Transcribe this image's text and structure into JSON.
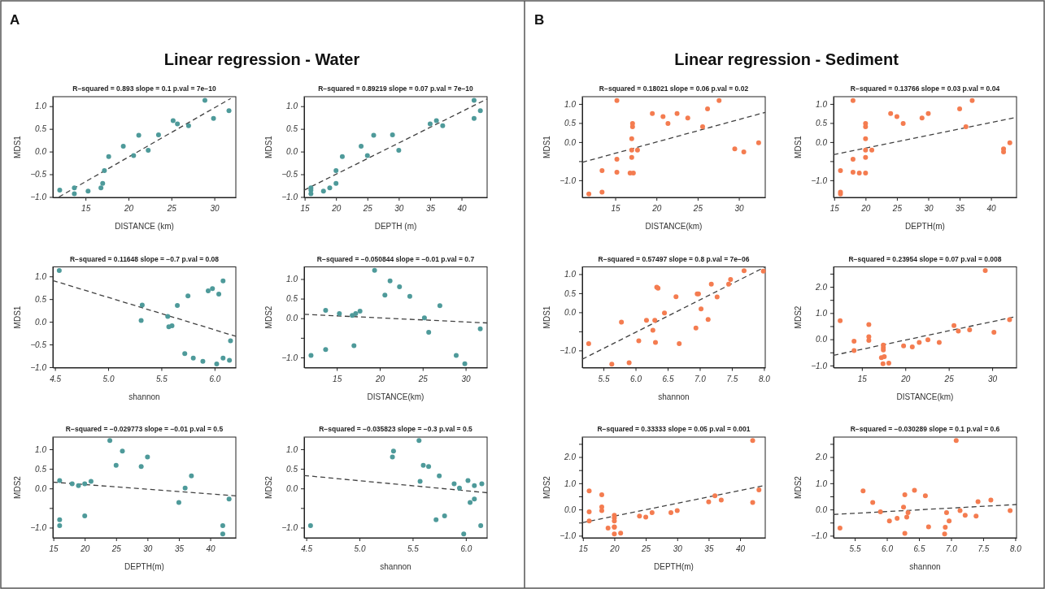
{
  "chart_data": [
    {
      "type": "scatter",
      "title": "R−squared = 0.893 slope = 0.1 p.val = 7e−10",
      "xlabel": "DISTANCE (km)",
      "ylabel": "MDS1",
      "annotations": [
        "A",
        "Linear regression - Water"
      ],
      "xlim": [
        11.2,
        32.5
      ],
      "xticks": [
        15,
        20,
        25,
        30
      ],
      "ylim": [
        -1.01,
        1.21
      ],
      "yticks": [
        {
          "value": -1,
          "label": "−1.0"
        },
        {
          "value": -0.5,
          "label": "−0.5"
        },
        {
          "value": 0,
          "label": "0.0"
        },
        {
          "value": 0.5,
          "label": "0.5"
        },
        {
          "value": 1,
          "label": "1.0"
        }
      ],
      "series": [
        {
          "type": "scatter",
          "marker": "circle",
          "color": "#4e9a9a",
          "x": [
            12.0,
            13.7,
            13.7,
            15.3,
            16.8,
            17.0,
            17.2,
            17.7,
            19.4,
            20.6,
            21.2,
            22.3,
            23.5,
            25.2,
            25.7,
            27.0,
            28.9,
            29.9,
            31.7
          ],
          "values": [
            -0.85,
            -0.8,
            -0.93,
            -0.87,
            -0.8,
            -0.7,
            -0.42,
            -0.11,
            0.12,
            -0.09,
            0.36,
            0.03,
            0.37,
            0.68,
            0.61,
            0.57,
            1.13,
            0.73,
            0.9
          ]
        },
        {
          "type": "line",
          "marker": "none",
          "color": "#404040",
          "line_style": "dashed",
          "x": [
            11.9,
            31.9
          ],
          "values": [
            -1.0,
            1.17
          ]
        }
      ]
    },
    {
      "type": "scatter",
      "title": "R−squared = 0.89219 slope = 0.07 p.val = 7e−10",
      "xlabel": "DEPTH (m)",
      "ylabel": "MDS1",
      "xlim": [
        14.92,
        44.08
      ],
      "xticks": [
        15,
        20,
        25,
        30,
        35,
        40
      ],
      "ylim": [
        -1.01,
        1.21
      ],
      "yticks": [
        {
          "value": -1,
          "label": "−1.0"
        },
        {
          "value": -0.5,
          "label": "−0.5"
        },
        {
          "value": 0,
          "label": "0.0"
        },
        {
          "value": 0.5,
          "label": "0.5"
        },
        {
          "value": 1,
          "label": "1.0"
        }
      ],
      "series": [
        {
          "type": "scatter",
          "marker": "circle",
          "color": "#4e9a9a",
          "x": [
            16,
            16,
            16,
            18,
            19,
            20,
            20,
            21,
            24,
            25,
            26,
            29,
            30,
            35,
            36,
            37,
            42,
            42,
            43
          ],
          "values": [
            -0.8,
            -0.85,
            -0.93,
            -0.87,
            -0.8,
            -0.42,
            -0.7,
            -0.11,
            0.12,
            -0.09,
            0.36,
            0.37,
            0.03,
            0.61,
            0.68,
            0.57,
            1.13,
            0.73,
            0.9
          ]
        },
        {
          "type": "line",
          "marker": "none",
          "color": "#404040",
          "line_style": "dashed",
          "x": [
            14.92,
            44.08
          ],
          "values": [
            -0.85,
            1.16
          ]
        }
      ]
    },
    {
      "type": "scatter",
      "title": "R−squared = 0.11648 slope = −0.7 p.val = 0.08",
      "xlabel": "shannon",
      "ylabel": "MDS1",
      "xlim": [
        4.48,
        6.2
      ],
      "xticks": [
        4.5,
        {
          "value": 5,
          "label": "5.0"
        },
        5.5,
        {
          "value": 6,
          "label": "6.0"
        }
      ],
      "ylim": [
        -1.01,
        1.21
      ],
      "yticks": [
        {
          "value": -1,
          "label": "−1.0"
        },
        {
          "value": -0.5,
          "label": "−0.5"
        },
        {
          "value": 0,
          "label": "0.0"
        },
        {
          "value": 0.5,
          "label": "0.5"
        },
        {
          "value": 1,
          "label": "1.0"
        }
      ],
      "series": [
        {
          "type": "scatter",
          "marker": "circle",
          "color": "#4e9a9a",
          "x": [
            4.54,
            5.32,
            5.31,
            5.56,
            5.57,
            5.6,
            5.65,
            5.75,
            5.72,
            5.8,
            5.94,
            5.98,
            6.04,
            6.08,
            6.08,
            6.14,
            5.89,
            6.02,
            6.15
          ],
          "values": [
            1.13,
            0.37,
            0.03,
            0.12,
            -0.11,
            -0.09,
            0.36,
            0.57,
            -0.7,
            -0.8,
            0.68,
            0.73,
            0.61,
            0.9,
            -0.8,
            -0.85,
            -0.87,
            -0.93,
            -0.42
          ]
        },
        {
          "type": "line",
          "marker": "none",
          "color": "#404040",
          "line_style": "dashed",
          "x": [
            4.48,
            6.2
          ],
          "values": [
            0.91,
            -0.32
          ]
        }
      ]
    },
    {
      "type": "scatter",
      "title": "R−squared = −0.050844 slope = −0.01 p.val = 0.7",
      "xlabel": "DISTANCE(km)",
      "ylabel": "MDS2",
      "xlim": [
        11.2,
        32.5
      ],
      "xticks": [
        15,
        20,
        25,
        30
      ],
      "ylim": [
        -1.26,
        1.31
      ],
      "yticks": [
        {
          "value": -1,
          "label": "−1.0"
        },
        {
          "value": -0.5,
          "label": null
        },
        {
          "value": 0,
          "label": "0.0"
        },
        {
          "value": 0.5,
          "label": "0.5"
        },
        {
          "value": 1,
          "label": "1.0"
        }
      ],
      "series": [
        {
          "type": "scatter",
          "marker": "circle",
          "color": "#4e9a9a",
          "x": [
            12.0,
            13.7,
            13.7,
            15.3,
            16.8,
            17.0,
            17.2,
            17.7,
            19.4,
            20.6,
            21.2,
            22.3,
            23.5,
            25.2,
            25.7,
            27.0,
            28.9,
            29.9,
            31.7
          ],
          "values": [
            -0.95,
            0.2,
            -0.8,
            0.12,
            0.07,
            -0.7,
            0.12,
            0.18,
            1.22,
            0.59,
            0.95,
            0.8,
            0.56,
            0.01,
            -0.36,
            0.32,
            -0.95,
            -1.16,
            -0.27
          ]
        },
        {
          "type": "line",
          "marker": "none",
          "color": "#404040",
          "line_style": "dashed",
          "x": [
            11.2,
            32.5
          ],
          "values": [
            0.1,
            -0.12
          ]
        }
      ]
    },
    {
      "type": "scatter",
      "title": "R−squared = −0.029773 slope = −0.01 p.val = 0.5",
      "xlabel": "DEPTH(m)",
      "ylabel": "MDS2",
      "xlim": [
        14.92,
        44.08
      ],
      "xticks": [
        15,
        20,
        25,
        30,
        35,
        40
      ],
      "ylim": [
        -1.26,
        1.31
      ],
      "yticks": [
        {
          "value": -1,
          "label": "−1.0"
        },
        {
          "value": -0.5,
          "label": null
        },
        {
          "value": 0,
          "label": "0.0"
        },
        {
          "value": 0.5,
          "label": "0.5"
        },
        {
          "value": 1,
          "label": "1.0"
        }
      ],
      "series": [
        {
          "type": "scatter",
          "marker": "circle",
          "color": "#4e9a9a",
          "x": [
            16,
            16,
            16,
            18,
            19,
            20,
            20,
            21,
            24,
            25,
            26,
            29,
            30,
            35,
            36,
            37,
            42,
            42,
            43
          ],
          "values": [
            0.2,
            -0.8,
            -0.95,
            0.12,
            0.07,
            0.12,
            -0.7,
            0.18,
            1.22,
            0.59,
            0.95,
            0.56,
            0.8,
            -0.36,
            0.01,
            0.32,
            -0.95,
            -1.16,
            -0.27
          ]
        },
        {
          "type": "line",
          "marker": "none",
          "color": "#404040",
          "line_style": "dashed",
          "x": [
            14.92,
            44.08
          ],
          "values": [
            0.16,
            -0.19
          ]
        }
      ]
    },
    {
      "type": "scatter",
      "title": "R−squared = −0.035823 slope = −0.3 p.val = 0.5",
      "xlabel": "shannon",
      "ylabel": "MDS2",
      "xlim": [
        4.48,
        6.2
      ],
      "xticks": [
        4.5,
        {
          "value": 5,
          "label": "5.0"
        },
        5.5,
        {
          "value": 6,
          "label": "6.0"
        }
      ],
      "ylim": [
        -1.26,
        1.31
      ],
      "yticks": [
        {
          "value": -1,
          "label": "−1.0"
        },
        {
          "value": -0.5,
          "label": null
        },
        {
          "value": 0,
          "label": "0.0"
        },
        {
          "value": 0.5,
          "label": "0.5"
        },
        {
          "value": 1,
          "label": "1.0"
        }
      ],
      "series": [
        {
          "type": "scatter",
          "marker": "circle",
          "color": "#4e9a9a",
          "x": [
            4.54,
            5.31,
            5.32,
            5.56,
            5.57,
            5.6,
            5.65,
            5.75,
            5.72,
            5.8,
            5.89,
            5.94,
            5.98,
            6.02,
            6.04,
            6.08,
            6.08,
            6.14,
            6.15
          ],
          "values": [
            -0.95,
            0.8,
            0.95,
            1.22,
            0.18,
            0.59,
            0.56,
            0.32,
            -0.8,
            -0.7,
            0.12,
            0.01,
            -1.16,
            0.2,
            -0.36,
            0.07,
            -0.27,
            -0.95,
            0.12
          ]
        },
        {
          "type": "line",
          "marker": "none",
          "color": "#404040",
          "line_style": "dashed",
          "x": [
            4.48,
            6.2
          ],
          "values": [
            0.33,
            -0.11
          ]
        }
      ]
    },
    {
      "type": "scatter",
      "title": "R−squared = 0.18021 slope = 0.06 p.val = 0.02",
      "xlabel": "DISTANCE(km)",
      "ylabel": "MDS1",
      "annotations": [
        "B",
        "Linear regression - Sediment"
      ],
      "xlim": [
        11.0,
        33.2
      ],
      "xticks": [
        15,
        20,
        25,
        30
      ],
      "ylim": [
        -1.45,
        1.19
      ],
      "yticks": [
        {
          "value": -1,
          "label": "−1.0"
        },
        {
          "value": -0.5,
          "label": null
        },
        {
          "value": 0,
          "label": "0.0"
        },
        {
          "value": 0.5,
          "label": "0.5"
        },
        {
          "value": 1,
          "label": "1.0"
        }
      ],
      "series": [
        {
          "type": "scatter",
          "marker": "circle",
          "color": "#f47c50",
          "x": [
            11.8,
            13.4,
            13.4,
            15.2,
            15.2,
            15.2,
            16.8,
            17.2,
            17.0,
            17.0,
            17.0,
            17.1,
            17.1,
            17.7,
            19.5,
            20.8,
            21.4,
            22.5,
            23.8,
            25.6,
            26.2,
            27.6,
            29.5,
            30.6,
            32.4
          ],
          "values": [
            -1.36,
            -0.75,
            -1.31,
            1.09,
            -0.45,
            -0.79,
            -0.81,
            -0.81,
            0.09,
            -0.21,
            -0.4,
            0.49,
            0.4,
            -0.21,
            0.75,
            0.67,
            0.49,
            0.75,
            0.63,
            0.4,
            0.87,
            1.09,
            -0.18,
            -0.26,
            -0.02
          ]
        },
        {
          "type": "line",
          "marker": "none",
          "color": "#404040",
          "line_style": "dashed",
          "x": [
            11.0,
            33.2
          ],
          "values": [
            -0.53,
            0.78
          ]
        }
      ]
    },
    {
      "type": "scatter",
      "title": "R−squared = 0.13766 slope = 0.03 p.val = 0.04",
      "xlabel": "DEPTH(m)",
      "ylabel": "MDS1",
      "xlim": [
        14.9,
        44.07
      ],
      "xticks": [
        15,
        20,
        25,
        30,
        35,
        40
      ],
      "ylim": [
        -1.45,
        1.19
      ],
      "yticks": [
        {
          "value": -1,
          "label": "−1.0"
        },
        {
          "value": -0.5,
          "label": null
        },
        {
          "value": 0,
          "label": "0.0"
        },
        {
          "value": 0.5,
          "label": "0.5"
        },
        {
          "value": 1,
          "label": "1.0"
        }
      ],
      "series": [
        {
          "type": "scatter",
          "marker": "circle",
          "color": "#f47c50",
          "x": [
            16,
            16,
            16,
            18,
            18,
            18,
            19,
            20,
            20,
            20,
            20,
            20,
            20,
            21,
            24,
            25,
            26,
            29,
            30,
            35,
            36,
            37,
            42,
            42,
            43
          ],
          "values": [
            -0.75,
            -1.31,
            -1.36,
            1.09,
            -0.45,
            -0.79,
            -0.81,
            0.49,
            0.4,
            0.09,
            -0.21,
            -0.4,
            -0.81,
            -0.21,
            0.75,
            0.67,
            0.49,
            0.63,
            0.75,
            0.87,
            0.4,
            1.09,
            -0.18,
            -0.26,
            -0.02
          ]
        },
        {
          "type": "line",
          "marker": "none",
          "color": "#404040",
          "line_style": "dashed",
          "x": [
            14.9,
            44.07
          ],
          "values": [
            -0.33,
            0.65
          ]
        }
      ]
    },
    {
      "type": "scatter",
      "title": "R−squared = 0.57497 slope = 0.8 p.val = 7e−06",
      "xlabel": "shannon",
      "ylabel": "MDS1",
      "xlim": [
        5.17,
        8.02
      ],
      "xticks": [
        5.5,
        {
          "value": 6,
          "label": "6.0"
        },
        6.5,
        {
          "value": 7,
          "label": "7.0"
        },
        7.5,
        {
          "value": 8,
          "label": "8.0"
        }
      ],
      "ylim": [
        -1.45,
        1.19
      ],
      "yticks": [
        {
          "value": -1,
          "label": "−1.0"
        },
        {
          "value": -0.5,
          "label": null
        },
        {
          "value": 0,
          "label": "0.0"
        },
        {
          "value": 0.5,
          "label": "0.5"
        },
        {
          "value": 1,
          "label": "1.0"
        }
      ],
      "series": [
        {
          "type": "scatter",
          "marker": "circle",
          "color": "#f47c50",
          "x": [
            5.27,
            5.63,
            5.78,
            5.9,
            6.05,
            6.17,
            6.27,
            6.3,
            6.31,
            6.33,
            6.35,
            6.45,
            6.63,
            6.68,
            6.94,
            6.96,
            6.98,
            7.02,
            7.13,
            7.18,
            7.27,
            7.45,
            7.48,
            7.69,
            7.99
          ],
          "values": [
            -0.82,
            -1.36,
            -0.26,
            -1.32,
            -0.75,
            -0.21,
            -0.47,
            -0.21,
            -0.79,
            0.66,
            0.63,
            -0.02,
            0.41,
            -0.82,
            -0.41,
            0.48,
            0.48,
            0.09,
            -0.19,
            0.74,
            0.4,
            0.74,
            0.86,
            1.09,
            1.08
          ]
        },
        {
          "type": "line",
          "marker": "none",
          "color": "#404040",
          "line_style": "dashed",
          "x": [
            5.17,
            8.02
          ],
          "values": [
            -1.23,
            1.19
          ]
        }
      ]
    },
    {
      "type": "scatter",
      "title": "R−squared = 0.23954 slope = 0.07 p.val = 0.008",
      "xlabel": "DISTANCE(km)",
      "ylabel": "MDS2",
      "xlim": [
        11.74,
        32.8
      ],
      "xticks": [
        15,
        20,
        25,
        30
      ],
      "ylim": [
        -1.08,
        2.76
      ],
      "yticks": [
        {
          "value": -1,
          "label": "−1.0"
        },
        {
          "value": -0.5,
          "label": null
        },
        {
          "value": 0,
          "label": "0.0"
        },
        {
          "value": 0.5,
          "label": null
        },
        {
          "value": 1,
          "label": "1.0"
        },
        {
          "value": 1.5,
          "label": null
        },
        {
          "value": 2,
          "label": "2.0"
        },
        {
          "value": 2.5,
          "label": null
        }
      ],
      "series": [
        {
          "type": "scatter",
          "marker": "circle",
          "color": "#f47c50",
          "x": [
            12.5,
            14.1,
            14.1,
            15.8,
            15.8,
            15.8,
            17.25,
            17.47,
            17.47,
            17.47,
            17.58,
            17.43,
            18.1,
            19.8,
            20.8,
            21.6,
            22.6,
            23.9,
            25.6,
            26.1,
            27.4,
            29.2,
            30.2,
            32.0
          ],
          "values": [
            0.71,
            -0.07,
            -0.43,
            0.56,
            0.1,
            -0.04,
            -0.7,
            -0.22,
            -0.32,
            -0.41,
            -0.66,
            -0.93,
            -0.91,
            -0.25,
            -0.29,
            -0.12,
            -0.02,
            -0.12,
            0.52,
            0.31,
            0.36,
            2.62,
            0.27,
            0.75
          ]
        },
        {
          "type": "line",
          "marker": "none",
          "color": "#404040",
          "line_style": "dashed",
          "x": [
            11.74,
            32.8
          ],
          "values": [
            -0.61,
            0.87
          ]
        }
      ]
    },
    {
      "type": "scatter",
      "title": "R−squared = 0.33333 slope = 0.05 p.val = 0.001",
      "xlabel": "DEPTH(m)",
      "ylabel": "MDS2",
      "xlim": [
        14.9,
        44.0
      ],
      "xticks": [
        15,
        20,
        25,
        30,
        35,
        40
      ],
      "ylim": [
        -1.08,
        2.76
      ],
      "yticks": [
        {
          "value": -1,
          "label": "−1.0"
        },
        {
          "value": -0.5,
          "label": null
        },
        {
          "value": 0,
          "label": "0.0"
        },
        {
          "value": 0.5,
          "label": null
        },
        {
          "value": 1,
          "label": "1.0"
        },
        {
          "value": 1.5,
          "label": null
        },
        {
          "value": 2,
          "label": "2.0"
        },
        {
          "value": 2.5,
          "label": null
        }
      ],
      "series": [
        {
          "type": "scatter",
          "marker": "circle",
          "color": "#f47c50",
          "x": [
            16,
            16,
            16,
            18,
            18,
            18,
            19,
            20,
            20,
            20,
            20,
            20,
            20,
            21,
            24,
            25,
            26,
            29,
            30,
            35,
            36,
            37,
            42,
            42,
            43
          ],
          "values": [
            0.71,
            -0.09,
            -0.44,
            0.56,
            0.1,
            -0.04,
            -0.71,
            -0.22,
            -0.32,
            -0.44,
            -0.66,
            -0.68,
            -0.93,
            -0.9,
            -0.25,
            -0.29,
            -0.12,
            -0.12,
            -0.04,
            0.29,
            0.52,
            0.36,
            2.63,
            0.27,
            0.75
          ]
        },
        {
          "type": "line",
          "marker": "none",
          "color": "#404040",
          "line_style": "dashed",
          "x": [
            14.9,
            44.0
          ],
          "values": [
            -0.5,
            0.92
          ]
        }
      ]
    },
    {
      "type": "scatter",
      "title": "R−squared = −0.030289 slope = 0.1 p.val = 0.6",
      "xlabel": "shannon",
      "ylabel": "MDS2",
      "xlim": [
        5.17,
        8.02
      ],
      "xticks": [
        5.5,
        {
          "value": 6,
          "label": "6.0"
        },
        6.5,
        {
          "value": 7,
          "label": "7.0"
        },
        7.5,
        {
          "value": 8,
          "label": "8.0"
        }
      ],
      "ylim": [
        -1.08,
        2.76
      ],
      "yticks": [
        {
          "value": -1,
          "label": "−1.0"
        },
        {
          "value": -0.5,
          "label": null
        },
        {
          "value": 0,
          "label": "0.0"
        },
        {
          "value": 0.5,
          "label": null
        },
        {
          "value": 1,
          "label": "1.0"
        },
        {
          "value": 1.5,
          "label": null
        },
        {
          "value": 2,
          "label": "2.0"
        },
        {
          "value": 2.5,
          "label": null
        }
      ],
      "series": [
        {
          "type": "scatter",
          "marker": "circle",
          "color": "#f47c50",
          "x": [
            5.27,
            5.63,
            5.78,
            5.9,
            6.04,
            6.16,
            6.26,
            6.28,
            6.28,
            6.31,
            6.33,
            6.43,
            6.6,
            6.65,
            6.9,
            6.91,
            6.93,
            6.97,
            7.08,
            7.14,
            7.22,
            7.39,
            7.42,
            7.62,
            7.92
          ],
          "values": [
            -0.71,
            0.71,
            0.27,
            -0.09,
            -0.44,
            -0.34,
            0.09,
            0.56,
            -0.91,
            -0.29,
            -0.12,
            0.73,
            0.52,
            -0.66,
            -0.93,
            -0.68,
            -0.12,
            -0.44,
            2.63,
            -0.04,
            -0.22,
            -0.25,
            0.3,
            0.36,
            -0.04
          ]
        },
        {
          "type": "line",
          "marker": "none",
          "color": "#404040",
          "line_style": "dashed",
          "x": [
            5.17,
            8.02
          ],
          "values": [
            -0.19,
            0.19
          ]
        }
      ]
    }
  ]
}
